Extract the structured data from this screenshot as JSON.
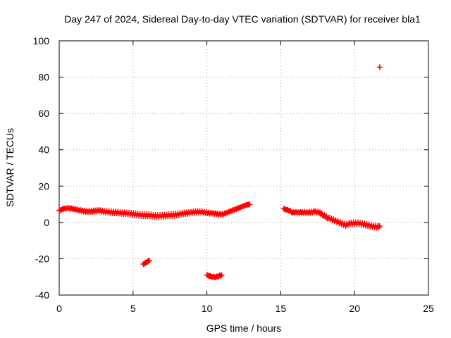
{
  "chart_data": {
    "type": "scatter",
    "title": "Day 247 of 2024, Sidereal Day-to-day VTEC variation (SDTVAR) for receiver bla1",
    "xlabel": "GPS time / hours",
    "ylabel": "SDTVAR / TECUs",
    "xlim": [
      0,
      25
    ],
    "ylim": [
      -40,
      100
    ],
    "xticks": [
      0,
      5,
      10,
      15,
      20,
      25
    ],
    "yticks": [
      -40,
      -20,
      0,
      20,
      40,
      60,
      80,
      100
    ],
    "grid": true,
    "marker": "+",
    "color": "#ff0000",
    "series": [
      {
        "name": "SDTVAR",
        "segments": [
          {
            "x": [
              0.0,
              0.3,
              0.6,
              0.9,
              1.2,
              1.5,
              1.8,
              2.1,
              2.4,
              2.7,
              3.0,
              3.3,
              3.6,
              3.9,
              4.2,
              4.5,
              4.8,
              5.1,
              5.4,
              5.7,
              6.0,
              6.3,
              6.6,
              6.9,
              7.2,
              7.5,
              7.8,
              8.1,
              8.4,
              8.7,
              9.0,
              9.3,
              9.6,
              9.9,
              10.2,
              10.5,
              10.8,
              11.1,
              11.4,
              11.7,
              12.0,
              12.3,
              12.6,
              12.9
            ],
            "y": [
              6.5,
              7.5,
              7.8,
              7.5,
              7.0,
              6.5,
              6.0,
              6.0,
              6.2,
              6.5,
              6.0,
              5.8,
              5.5,
              5.5,
              5.2,
              5.0,
              4.8,
              4.5,
              4.2,
              4.0,
              4.0,
              3.8,
              3.5,
              3.5,
              3.8,
              4.0,
              4.2,
              4.5,
              5.0,
              5.2,
              5.5,
              5.8,
              5.8,
              5.5,
              5.2,
              5.0,
              4.5,
              4.5,
              5.5,
              6.5,
              7.5,
              8.5,
              9.5,
              10.0
            ]
          },
          {
            "x": [
              5.7,
              5.8,
              5.9,
              6.0,
              6.1
            ],
            "y": [
              -23.0,
              -22.5,
              -22.0,
              -21.5,
              -21.0
            ]
          },
          {
            "x": [
              10.0,
              10.2,
              10.4,
              10.6,
              10.8,
              11.0
            ],
            "y": [
              -29.0,
              -29.5,
              -30.0,
              -30.0,
              -29.5,
              -29.0
            ]
          },
          {
            "x": [
              15.2,
              15.4,
              15.6,
              15.8,
              16.1,
              16.4,
              16.7,
              17.0,
              17.3,
              17.6,
              17.9,
              18.2,
              18.5,
              18.8,
              19.1,
              19.4,
              19.7,
              20.0,
              20.3,
              20.6,
              20.9,
              21.2,
              21.5,
              21.7
            ],
            "y": [
              7.5,
              7.0,
              6.5,
              5.5,
              5.5,
              5.5,
              5.5,
              5.5,
              6.0,
              5.5,
              4.0,
              2.5,
              1.5,
              0.5,
              -0.5,
              -1.5,
              -0.5,
              -0.5,
              -0.5,
              -1.0,
              -1.5,
              -2.0,
              -2.5,
              -2.0
            ]
          },
          {
            "x": [
              21.7
            ],
            "y": [
              85.5
            ]
          }
        ]
      }
    ]
  }
}
